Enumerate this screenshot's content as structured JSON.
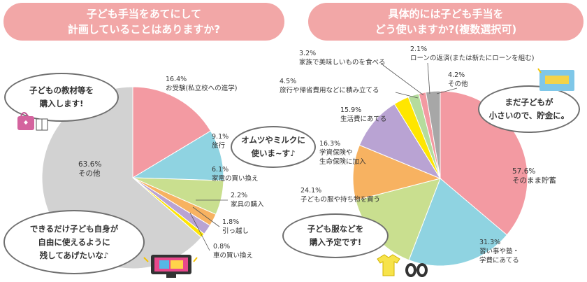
{
  "titles": {
    "left": {
      "line1": "子ども手当をあてにして",
      "line2": "計画していることはありますか?"
    },
    "right": {
      "line1": "具体的には子ども手当を",
      "line2": "どう使いますか?(複数選択可)"
    }
  },
  "bubbles": {
    "left_top": {
      "line1": "子どもの教材等を",
      "line2": "購入します!"
    },
    "left_bottom": {
      "line1": "できるだけ子ども自身が",
      "line2": "自由に使えるように",
      "line3": "残してあげたいな♪"
    },
    "middle": {
      "line1": "オムツやミルクに",
      "line2": "使いま~す♪"
    },
    "right_top": {
      "line1": "まだ子どもが",
      "line2": "小さいので、貯金に。"
    },
    "right_bottom": {
      "line1": "子ども服などを",
      "line2": "購入予定です!"
    }
  },
  "colors": {
    "pink": "#f39aa2",
    "cyan": "#8fd3e1",
    "green": "#c9df8f",
    "orange": "#f7b261",
    "purple": "#b9a3d3",
    "yellow": "#ffe600",
    "lightgreen": "#b5dc9d",
    "gray": "#a7a7a7",
    "bg_gray": "#d2d2d2",
    "banner": "#f2a7a7"
  },
  "chart_data": [
    {
      "type": "pie",
      "title": "子ども手当をあてにして計画していることはありますか?",
      "slices": [
        {
          "label": "お受験(私立校への進学)",
          "value": 16.4,
          "pct_label": "16.4%",
          "color": "#f39aa2"
        },
        {
          "label": "旅行",
          "value": 9.1,
          "pct_label": "9.1%",
          "color": "#8fd3e1"
        },
        {
          "label": "家電の買い換え",
          "value": 6.1,
          "pct_label": "6.1%",
          "color": "#c9df8f"
        },
        {
          "label": "家具の購入",
          "value": 2.2,
          "pct_label": "2.2%",
          "color": "#f7b261"
        },
        {
          "label": "引っ越し",
          "value": 1.8,
          "pct_label": "1.8%",
          "color": "#b9a3d3"
        },
        {
          "label": "車の買い換え",
          "value": 0.8,
          "pct_label": "0.8%",
          "color": "#ffe600"
        },
        {
          "label": "その他",
          "value": 63.6,
          "pct_label": "63.6%",
          "color": "#d2d2d2"
        }
      ]
    },
    {
      "type": "pie",
      "title": "具体的には子ども手当をどう使いますか?(複数選択可)",
      "slices": [
        {
          "label": "そのまま貯蓄",
          "value": 57.6,
          "pct_label": "57.6%",
          "color": "#f39aa2"
        },
        {
          "label": "習い事や塾・学費にあてる",
          "value": 31.3,
          "pct_label": "31.3%",
          "color": "#8fd3e1"
        },
        {
          "label": "子どもの服や持ち物を買う",
          "value": 24.1,
          "pct_label": "24.1%",
          "color": "#c9df8f"
        },
        {
          "label": "学資保険や生命保険に加入",
          "value": 16.3,
          "pct_label": "16.3%",
          "color": "#f7b261"
        },
        {
          "label": "生活費にあてる",
          "value": 15.9,
          "pct_label": "15.9%",
          "color": "#b9a3d3"
        },
        {
          "label": "旅行や帰省費用などに積み立てる",
          "value": 4.5,
          "pct_label": "4.5%",
          "color": "#ffe600"
        },
        {
          "label": "家族で美味しいものを食べる",
          "value": 3.2,
          "pct_label": "3.2%",
          "color": "#b5dc9d"
        },
        {
          "label": "ローンの返済(または新たにローンを組む)",
          "value": 2.1,
          "pct_label": "2.1%",
          "color": "#f39aa2"
        },
        {
          "label": "その他",
          "value": 4.2,
          "pct_label": "4.2%",
          "color": "#a7a7a7"
        }
      ]
    }
  ]
}
